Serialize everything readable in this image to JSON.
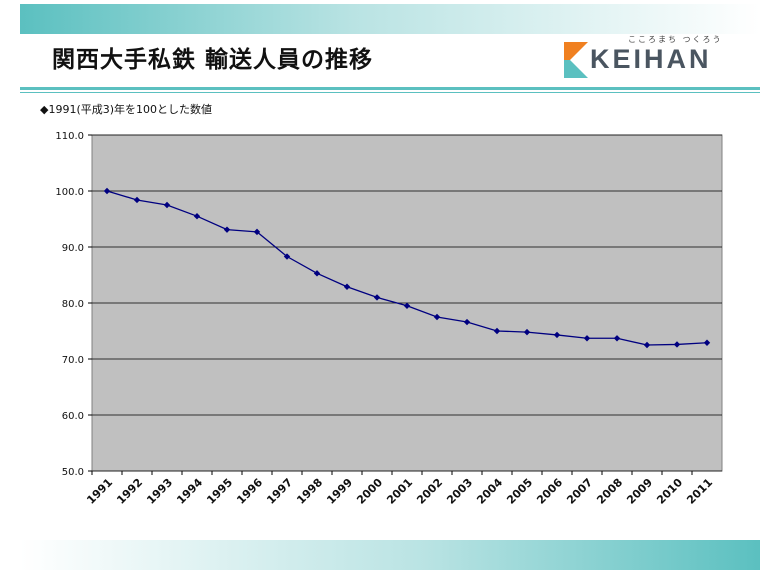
{
  "header": {
    "title": "関西大手私鉄 輸送人員の推移",
    "logo_tagline": "こころまち つくろう",
    "logo_word": "KEIHAN"
  },
  "colors": {
    "accent": "#5bc0c0",
    "plot_background": "#c0c0c0",
    "series_line": "#000080",
    "logo_orange": "#f08020"
  },
  "chart_data": {
    "type": "line",
    "title": "◆1991(平成3)年を100とした数値",
    "xlabel": "",
    "ylabel": "",
    "ylim": [
      50,
      110
    ],
    "yticks": [
      "110.0",
      "100.0",
      "90.0",
      "80.0",
      "70.0",
      "60.0",
      "50.0"
    ],
    "grid": true,
    "legend": "none",
    "categories": [
      "1991",
      "1992",
      "1993",
      "1994",
      "1995",
      "1996",
      "1997",
      "1998",
      "1999",
      "2000",
      "2001",
      "2002",
      "2003",
      "2004",
      "2005",
      "2006",
      "2007",
      "2008",
      "2009",
      "2010",
      "2011"
    ],
    "series": [
      {
        "values": [
          100.0,
          98.4,
          97.5,
          95.5,
          93.1,
          92.7,
          88.3,
          85.3,
          82.9,
          81.0,
          79.5,
          77.5,
          76.6,
          75.0,
          74.8,
          74.3,
          73.7,
          73.7,
          72.5,
          72.6,
          72.9
        ]
      }
    ]
  }
}
